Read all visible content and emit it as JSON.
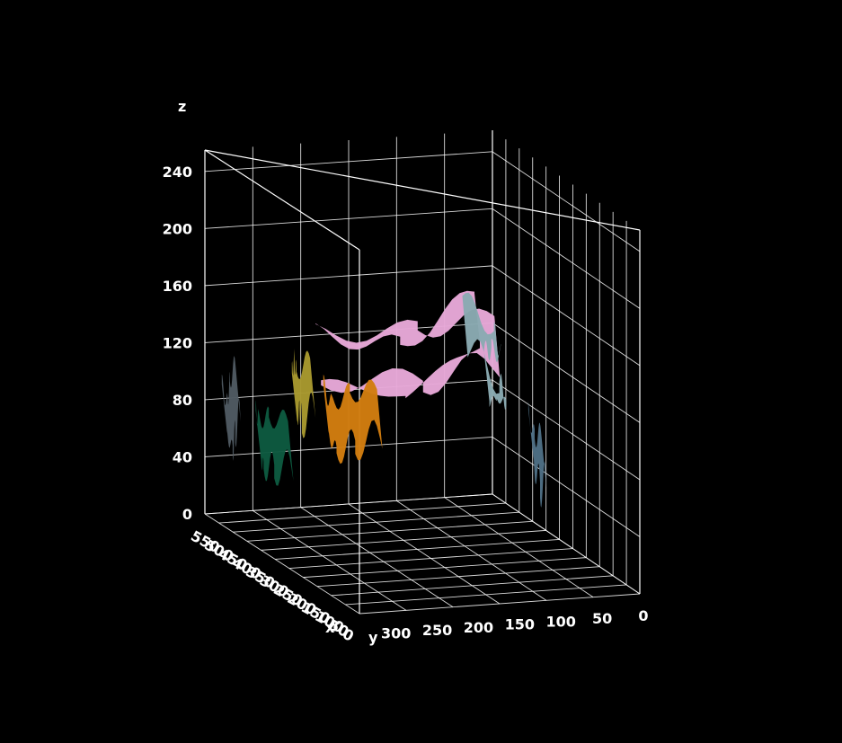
{
  "chart_data": {
    "type": "surface",
    "title": "",
    "xlabel": "x",
    "ylabel": "y",
    "zlabel": "z",
    "x_ticks": [
      "0",
      "50",
      "100",
      "150",
      "200",
      "250",
      "300",
      "350",
      "400",
      "450",
      "500",
      "550"
    ],
    "y_ticks": [
      "300",
      "250",
      "200",
      "150",
      "100",
      "50",
      "0"
    ],
    "z_ticks": [
      "0",
      "40",
      "80",
      "120",
      "160",
      "200",
      "240"
    ],
    "xlim": [
      0,
      560
    ],
    "ylim": [
      0,
      340
    ],
    "zlim": [
      0,
      255
    ],
    "grid": true,
    "background": "#000000",
    "series": [
      {
        "color": "#e7a8d8",
        "x": [
          50,
          150,
          280,
          400,
          500
        ],
        "y": [
          160,
          220,
          300,
          160,
          40
        ],
        "z": [
          195,
          175,
          160,
          130,
          150
        ]
      },
      {
        "color": "#8aaab2",
        "x": [
          200,
          300,
          400,
          500,
          560
        ],
        "y": [
          150,
          80,
          40,
          20,
          10
        ],
        "z": [
          190,
          150,
          120,
          110,
          100
        ]
      },
      {
        "color": "#a8992e",
        "x": [
          300,
          380,
          450,
          520
        ],
        "y": [
          300,
          290,
          270,
          250
        ],
        "z": [
          140,
          120,
          120,
          100
        ]
      },
      {
        "color": "#d27d0f",
        "x": [
          300,
          400,
          500,
          560
        ],
        "y": [
          220,
          220,
          210,
          200
        ],
        "z": [
          115,
          100,
          80,
          85
        ]
      },
      {
        "color": "#4f5a62",
        "x": [
          450,
          500,
          540,
          560
        ],
        "y": [
          340,
          330,
          320,
          320
        ],
        "z": [
          120,
          100,
          80,
          90
        ]
      },
      {
        "color": "#0d5a40",
        "x": [
          350,
          450,
          520,
          560
        ],
        "y": [
          310,
          300,
          290,
          280
        ],
        "z": [
          90,
          80,
          70,
          70
        ]
      },
      {
        "color": "#4e6f85",
        "x": [
          280,
          320,
          360
        ],
        "y": [
          30,
          25,
          20
        ],
        "z": [
          80,
          70,
          85
        ]
      }
    ]
  }
}
